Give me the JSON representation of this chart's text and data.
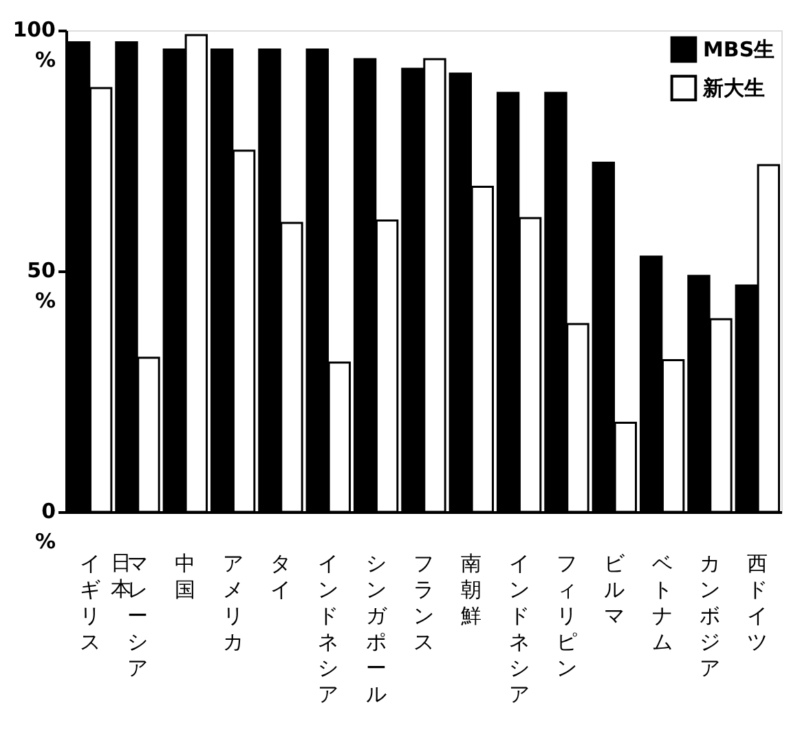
{
  "chart_data": {
    "type": "bar",
    "categories": [
      "イギリス",
      "マレーシア",
      "中国",
      "アメリカ",
      "タイ",
      "インドネシア",
      "シンガポール",
      "フランス",
      "南朝鮮",
      "インドネシア",
      "フィリピン",
      "ビルマ",
      "ベトナム",
      "カンボジア",
      "西ドイツ"
    ],
    "series": [
      {
        "name": "MBS生",
        "color": "#000000",
        "values": [
          97.5,
          97.5,
          96,
          96,
          96,
          96,
          94,
          92,
          91,
          87,
          87,
          72.5,
          53,
          49,
          47
        ]
      },
      {
        "name": "新大生",
        "color": "#ffffff",
        "values": [
          88,
          32,
          99,
          75,
          60,
          31,
          60.5,
          94,
          67.5,
          61,
          39,
          18.5,
          31.5,
          40,
          72
        ]
      }
    ],
    "annotations": [
      "日本"
    ],
    "ylim": [
      0,
      100
    ],
    "yticks": [
      {
        "value": 0,
        "label": "0\n%"
      },
      {
        "value": 50,
        "label": "50\n%"
      },
      {
        "value": 100,
        "label": "100\n%"
      }
    ],
    "grid": false,
    "legend": "top right"
  }
}
